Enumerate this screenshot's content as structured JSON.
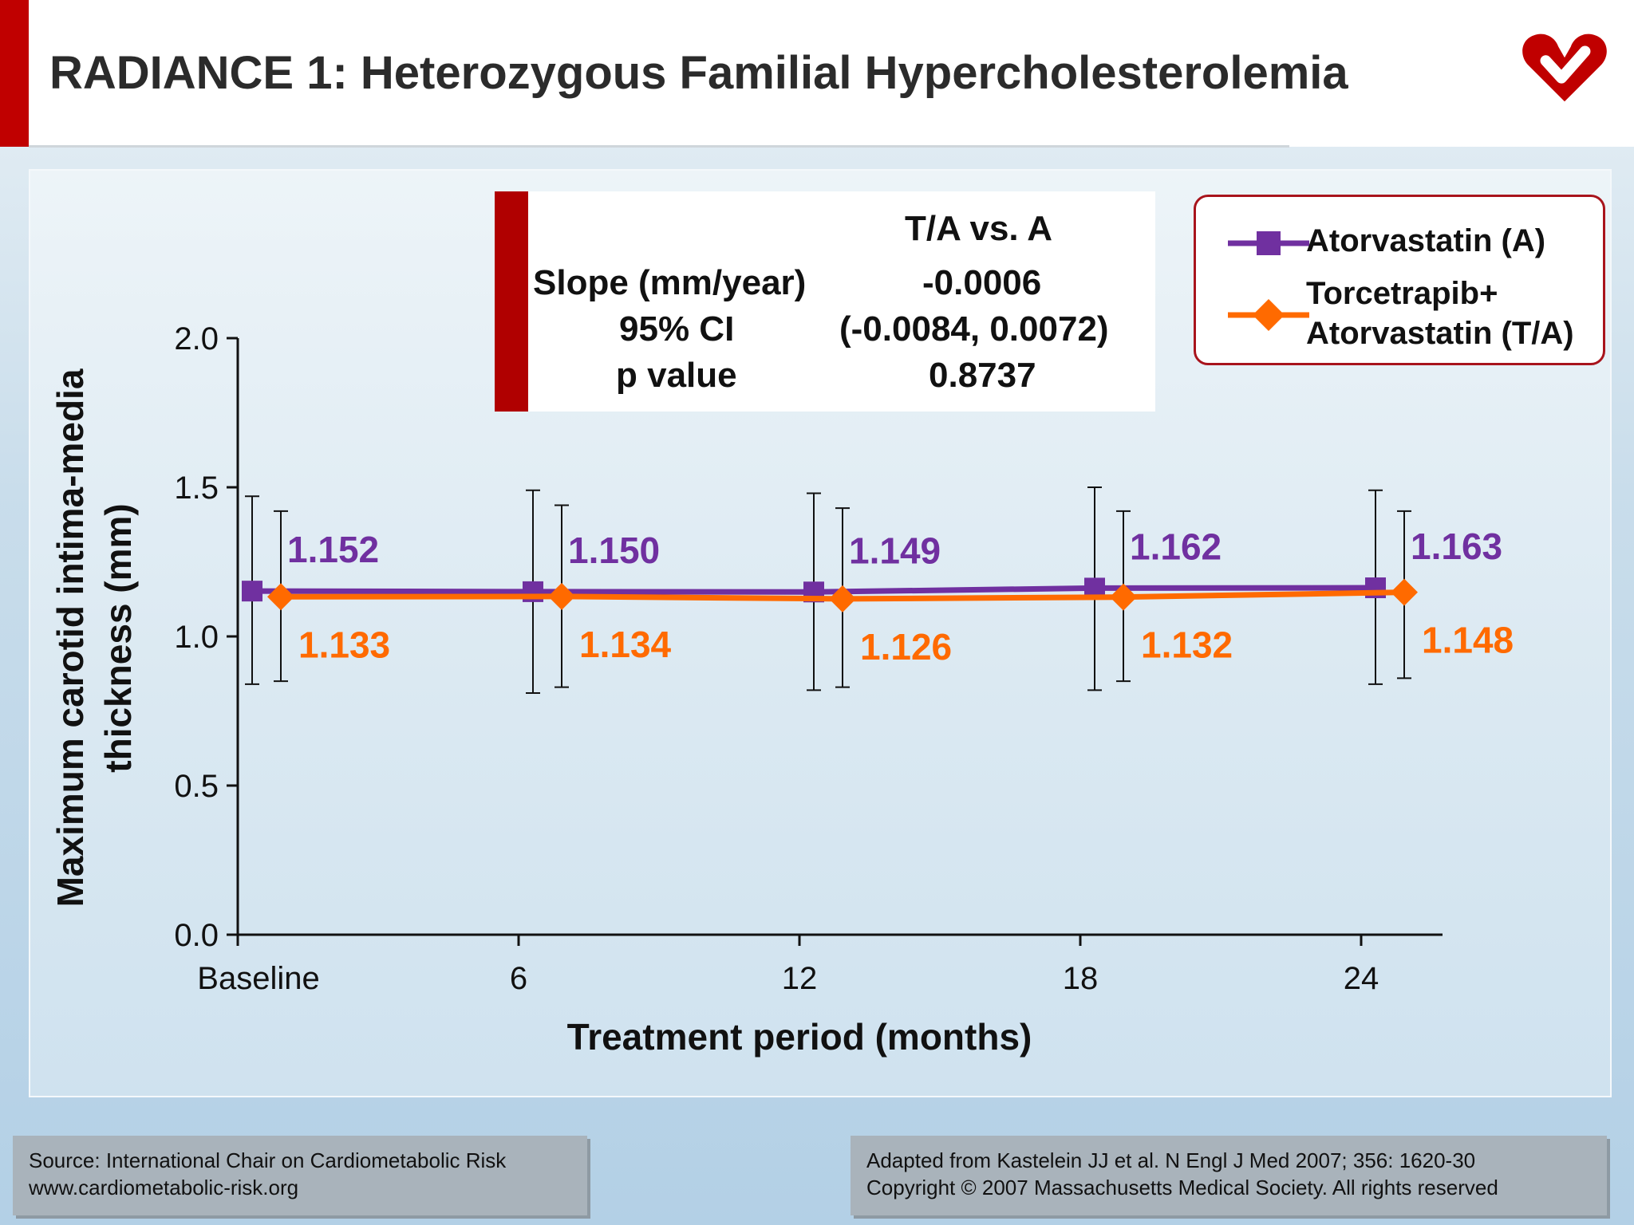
{
  "slide": {
    "title": "RADIANCE 1: Heterozygous Familial Hypercholesterolemia"
  },
  "stats_table": {
    "column_header": "T/A vs. A",
    "rows": [
      {
        "label": "Slope (mm/year)",
        "value": "-0.0006"
      },
      {
        "label": "95% CI",
        "value": "(-0.0084, 0.0072)"
      },
      {
        "label": "p value",
        "value": "0.8737"
      }
    ]
  },
  "legend": {
    "atorvastatin": "Atorvastatin (A)",
    "combo_line1": "Torcetrapib+",
    "combo_line2": "Atorvastatin (T/A)"
  },
  "footer": {
    "source_line1": "Source: International Chair on Cardiometabolic Risk",
    "source_line2": "www.cardiometabolic-risk.org",
    "citation_line1": "Adapted from Kastelein JJ et al. N Engl J Med 2007; 356: 1620-30",
    "citation_line2": "Copyright © 2007 Massachusetts Medical Society. All rights reserved"
  },
  "colors": {
    "brand_red": "#c00000",
    "atorvastatin": "#7030a0",
    "combo": "#ff6a00"
  },
  "chart_data": {
    "type": "line",
    "categories": [
      "Baseline",
      "6",
      "12",
      "18",
      "24"
    ],
    "xlabel": "Treatment period (months)",
    "ylabel_line1": "Maximum carotid intima-media",
    "ylabel_line2": "thickness (mm)",
    "ylim": [
      0,
      2.0
    ],
    "yticks": [
      "0.0",
      "0.5",
      "1.0",
      "1.5",
      "2.0"
    ],
    "grid": false,
    "series": [
      {
        "name": "Atorvastatin (A)",
        "values": [
          1.152,
          1.15,
          1.149,
          1.162,
          1.163
        ],
        "labels": [
          "1.152",
          "1.150",
          "1.149",
          "1.162",
          "1.163"
        ],
        "err_low": [
          0.84,
          0.81,
          0.82,
          0.82,
          0.84
        ],
        "err_high": [
          1.47,
          1.49,
          1.48,
          1.5,
          1.49
        ],
        "color": "#7030a0",
        "marker": "square"
      },
      {
        "name": "Torcetrapib+ Atorvastatin (T/A)",
        "values": [
          1.133,
          1.134,
          1.126,
          1.132,
          1.148
        ],
        "labels": [
          "1.133",
          "1.134",
          "1.126",
          "1.132",
          "1.148"
        ],
        "err_low": [
          0.85,
          0.83,
          0.83,
          0.85,
          0.86
        ],
        "err_high": [
          1.42,
          1.44,
          1.43,
          1.42,
          1.42
        ],
        "color": "#ff6a00",
        "marker": "diamond"
      }
    ]
  }
}
